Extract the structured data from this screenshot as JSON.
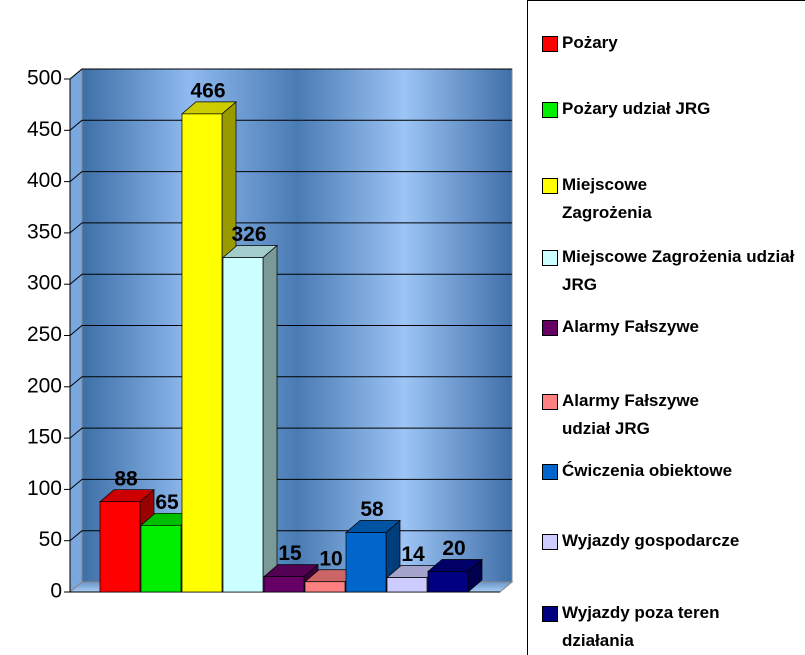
{
  "chart_data": {
    "type": "bar",
    "series": [
      {
        "name": "Pożary",
        "color": "#ff0000",
        "values": [
          88
        ]
      },
      {
        "name": "Pożary udział JRG",
        "color": "#00ee00",
        "values": [
          65
        ]
      },
      {
        "name": "Miejscowe Zagrożenia",
        "color": "#ffff00",
        "values": [
          466
        ]
      },
      {
        "name": "Miejscowe Zagrożenia udział JRG",
        "color": "#ccffff",
        "values": [
          326
        ]
      },
      {
        "name": "Alarmy Fałszywe",
        "color": "#660066",
        "values": [
          15
        ]
      },
      {
        "name": "Alarmy Fałszywe udział JRG",
        "color": "#ff8080",
        "values": [
          10
        ]
      },
      {
        "name": "Ćwiczenia obiektowe",
        "color": "#0066cc",
        "values": [
          58
        ]
      },
      {
        "name": "Wyjazdy gospodarcze",
        "color": "#ccccff",
        "values": [
          14
        ]
      },
      {
        "name": "Wyjazdy poza teren działania",
        "color": "#000080",
        "values": [
          20
        ]
      }
    ],
    "ylim": [
      0,
      500
    ],
    "yticks": [
      0,
      50,
      100,
      150,
      200,
      250,
      300,
      350,
      400,
      450,
      500
    ],
    "grid": true
  }
}
